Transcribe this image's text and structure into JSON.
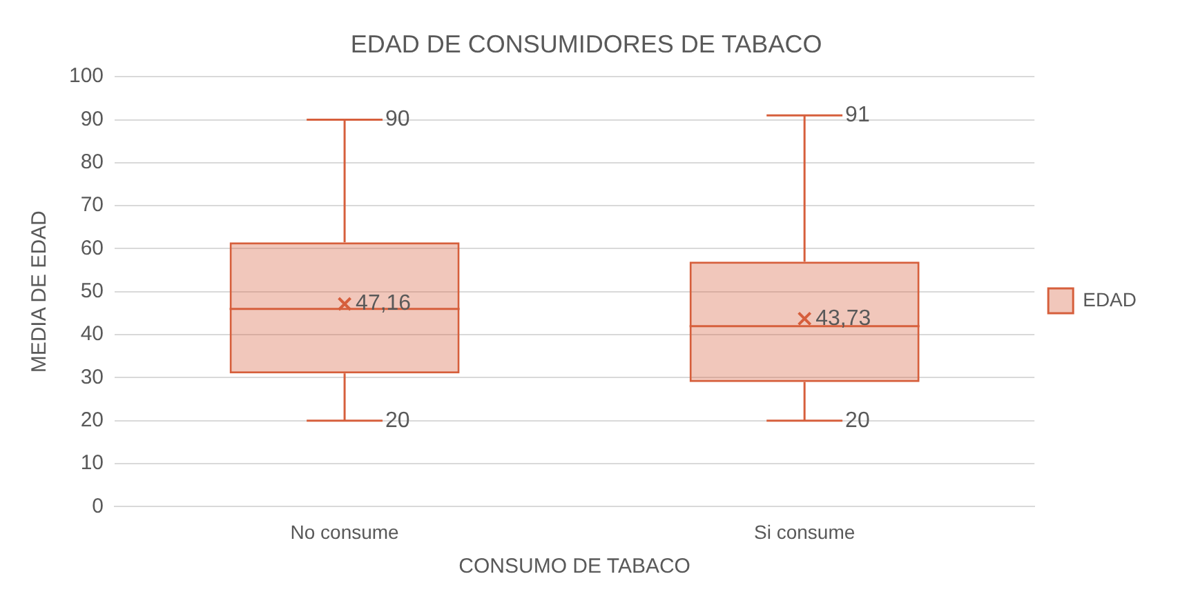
{
  "chart_data": {
    "type": "box",
    "title": "EDAD DE CONSUMIDORES DE TABACO",
    "xlabel": "CONSUMO DE TABACO",
    "ylabel": "MEDIA DE EDAD",
    "categories": [
      "No consume",
      "Si consume"
    ],
    "series": [
      {
        "name": "EDAD",
        "color": "#d65f3c",
        "boxes": [
          {
            "low": 20,
            "q1": 31,
            "median": 46,
            "q3": 61.5,
            "high": 90
          },
          {
            "low": 20,
            "q1": 29,
            "median": 42,
            "q3": 57,
            "high": 91
          }
        ]
      },
      {
        "type": "scatter",
        "color": "#d65f3c",
        "marker": "cross",
        "x": [
          "No consume",
          "Si consume"
        ],
        "values": [
          47.16,
          43.73
        ],
        "value_labels": [
          "47,16",
          "43,73"
        ]
      }
    ],
    "ylim": [
      0,
      100
    ],
    "yticks": [
      0,
      10,
      20,
      30,
      40,
      50,
      60,
      70,
      80,
      90,
      100
    ],
    "grid": "y",
    "legend": "right",
    "annotations": [
      {
        "text": "90",
        "x": "No consume",
        "y": 90
      },
      {
        "text": "20",
        "x": "No consume",
        "y": 20
      },
      {
        "text": "91",
        "x": "Si consume",
        "y": 91
      },
      {
        "text": "20",
        "x": "Si consume",
        "y": 20
      }
    ]
  }
}
